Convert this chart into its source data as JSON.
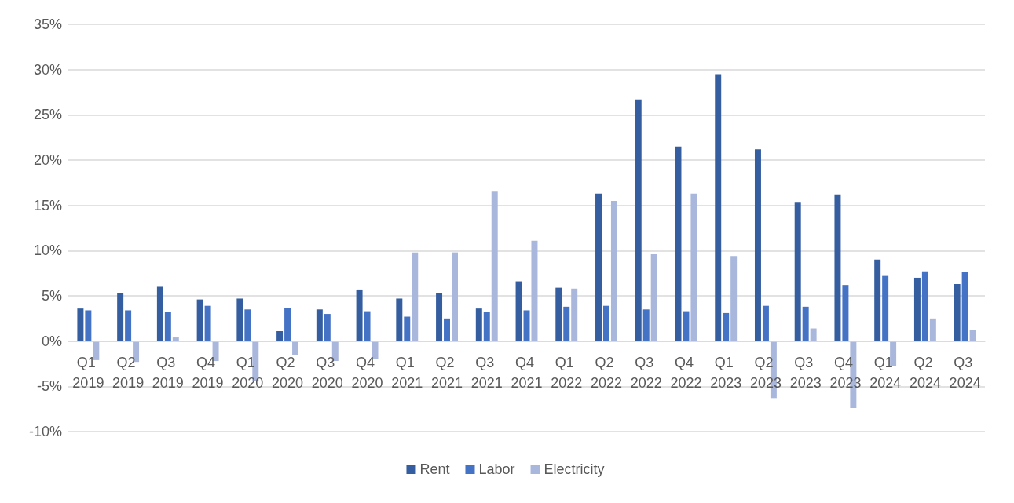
{
  "chart_data": {
    "type": "bar",
    "categories": [
      "Q1 2019",
      "Q2 2019",
      "Q3 2019",
      "Q4 2019",
      "Q1 2020",
      "Q2 2020",
      "Q3 2020",
      "Q4 2020",
      "Q1 2021",
      "Q2 2021",
      "Q3 2021",
      "Q4 2021",
      "Q1 2022",
      "Q2 2022",
      "Q3 2022",
      "Q4 2022",
      "Q1 2023",
      "Q2 2023",
      "Q3 2023",
      "Q4 2023",
      "Q1 2024",
      "Q2 2024",
      "Q3 2024"
    ],
    "series": [
      {
        "name": "Rent",
        "color": "#345ea0",
        "values": [
          3.6,
          5.3,
          6.0,
          4.6,
          4.7,
          1.1,
          3.5,
          5.7,
          4.7,
          5.3,
          3.6,
          6.6,
          5.9,
          16.3,
          26.7,
          21.5,
          29.5,
          21.2,
          15.3,
          16.2,
          9.0,
          7.0,
          6.3
        ]
      },
      {
        "name": "Labor",
        "color": "#4472c4",
        "values": [
          3.4,
          3.4,
          3.2,
          3.9,
          3.5,
          3.7,
          3.0,
          3.3,
          2.7,
          2.5,
          3.2,
          3.4,
          3.8,
          3.9,
          3.5,
          3.3,
          3.1,
          3.9,
          3.8,
          6.2,
          7.2,
          7.7,
          7.6
        ]
      },
      {
        "name": "Electricity",
        "color": "#a9b7dc",
        "values": [
          -2.1,
          -2.3,
          0.4,
          -2.2,
          -4.4,
          -1.5,
          -2.2,
          -2.0,
          9.8,
          9.8,
          16.5,
          11.1,
          5.8,
          15.5,
          9.6,
          16.3,
          9.4,
          -6.3,
          1.4,
          -7.4,
          -2.8,
          2.5,
          1.2
        ]
      }
    ],
    "ylim": [
      -10,
      35
    ],
    "yticks": [
      {
        "value": -10,
        "label": "-10%"
      },
      {
        "value": -5,
        "label": "-5%"
      },
      {
        "value": 0,
        "label": "0%"
      },
      {
        "value": 5,
        "label": "5%"
      },
      {
        "value": 10,
        "label": "10%"
      },
      {
        "value": 15,
        "label": "15%"
      },
      {
        "value": 20,
        "label": "20%"
      },
      {
        "value": 25,
        "label": "25%"
      },
      {
        "value": 30,
        "label": "30%"
      },
      {
        "value": 35,
        "label": "35%"
      }
    ],
    "grid": "y",
    "legend": "bottom"
  }
}
